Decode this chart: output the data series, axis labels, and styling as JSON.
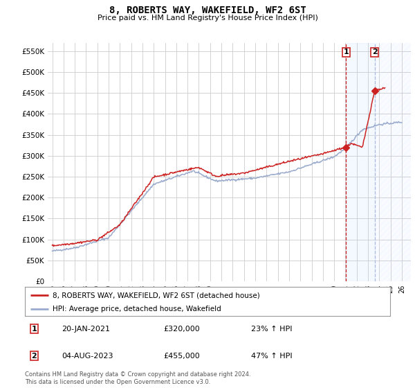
{
  "title": "8, ROBERTS WAY, WAKEFIELD, WF2 6ST",
  "subtitle": "Price paid vs. HM Land Registry's House Price Index (HPI)",
  "ylabel_ticks": [
    "£0",
    "£50K",
    "£100K",
    "£150K",
    "£200K",
    "£250K",
    "£300K",
    "£350K",
    "£400K",
    "£450K",
    "£500K",
    "£550K"
  ],
  "ylabel_vals": [
    0,
    50000,
    100000,
    150000,
    200000,
    250000,
    300000,
    350000,
    400000,
    450000,
    500000,
    550000
  ],
  "ylim": [
    0,
    570000
  ],
  "xlim_start": 1994.6,
  "xlim_end": 2026.8,
  "background_color": "#ffffff",
  "grid_color": "#cccccc",
  "red_color": "#cc2222",
  "blue_color": "#99aacc",
  "ann1_x": 2021.05,
  "ann1_y": 320000,
  "ann2_x": 2023.6,
  "ann2_y": 455000,
  "annotation1": {
    "label": "1",
    "date": "20-JAN-2021",
    "price": "£320,000",
    "hpi": "23% ↑ HPI"
  },
  "annotation2": {
    "label": "2",
    "date": "04-AUG-2023",
    "price": "£455,000",
    "hpi": "47% ↑ HPI"
  },
  "legend1": "8, ROBERTS WAY, WAKEFIELD, WF2 6ST (detached house)",
  "legend2": "HPI: Average price, detached house, Wakefield",
  "footer": "Contains HM Land Registry data © Crown copyright and database right 2024.\nThis data is licensed under the Open Government Licence v3.0."
}
